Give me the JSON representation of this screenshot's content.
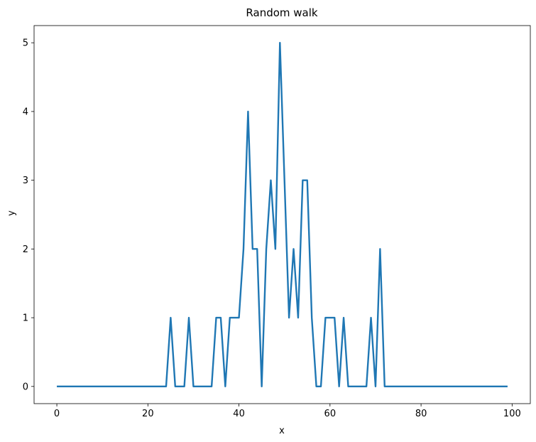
{
  "chart_data": {
    "type": "line",
    "title": "Random walk",
    "xlabel": "x",
    "ylabel": "y",
    "xlim": [
      -5,
      104
    ],
    "ylim": [
      -0.25,
      5.25
    ],
    "xticks": [
      0,
      20,
      40,
      60,
      80,
      100
    ],
    "yticks": [
      0,
      1,
      2,
      3,
      4,
      5
    ],
    "grid": false,
    "line_color": "#1f77b4",
    "series": [
      {
        "x": [
          0,
          1,
          2,
          3,
          4,
          5,
          6,
          7,
          8,
          9,
          10,
          11,
          12,
          13,
          14,
          15,
          16,
          17,
          18,
          19,
          20,
          21,
          22,
          23,
          24,
          25,
          26,
          27,
          28,
          29,
          30,
          31,
          32,
          33,
          34,
          35,
          36,
          37,
          38,
          39,
          40,
          41,
          42,
          43,
          44,
          45,
          46,
          47,
          48,
          49,
          50,
          51,
          52,
          53,
          54,
          55,
          56,
          57,
          58,
          59,
          60,
          61,
          62,
          63,
          64,
          65,
          66,
          67,
          68,
          69,
          70,
          71,
          72,
          73,
          74,
          75,
          76,
          77,
          78,
          79,
          80,
          81,
          82,
          83,
          84,
          85,
          86,
          87,
          88,
          89,
          90,
          91,
          92,
          93,
          94,
          95,
          96,
          97,
          98,
          99
        ],
        "y": [
          0,
          0,
          0,
          0,
          0,
          0,
          0,
          0,
          0,
          0,
          0,
          0,
          0,
          0,
          0,
          0,
          0,
          0,
          0,
          0,
          0,
          0,
          0,
          0,
          0,
          1,
          0,
          0,
          0,
          1,
          0,
          0,
          0,
          0,
          0,
          1,
          1,
          0,
          1,
          1,
          1,
          2,
          4,
          2,
          2,
          0,
          2,
          3,
          2,
          5,
          3,
          1,
          2,
          1,
          3,
          3,
          1,
          0,
          0,
          1,
          1,
          1,
          0,
          1,
          0,
          0,
          0,
          0,
          0,
          1,
          0,
          2,
          0,
          0,
          0,
          0,
          0,
          0,
          0,
          0,
          0,
          0,
          0,
          0,
          0,
          0,
          0,
          0,
          0,
          0,
          0,
          0,
          0,
          0,
          0,
          0,
          0,
          0,
          0,
          0
        ]
      }
    ]
  }
}
